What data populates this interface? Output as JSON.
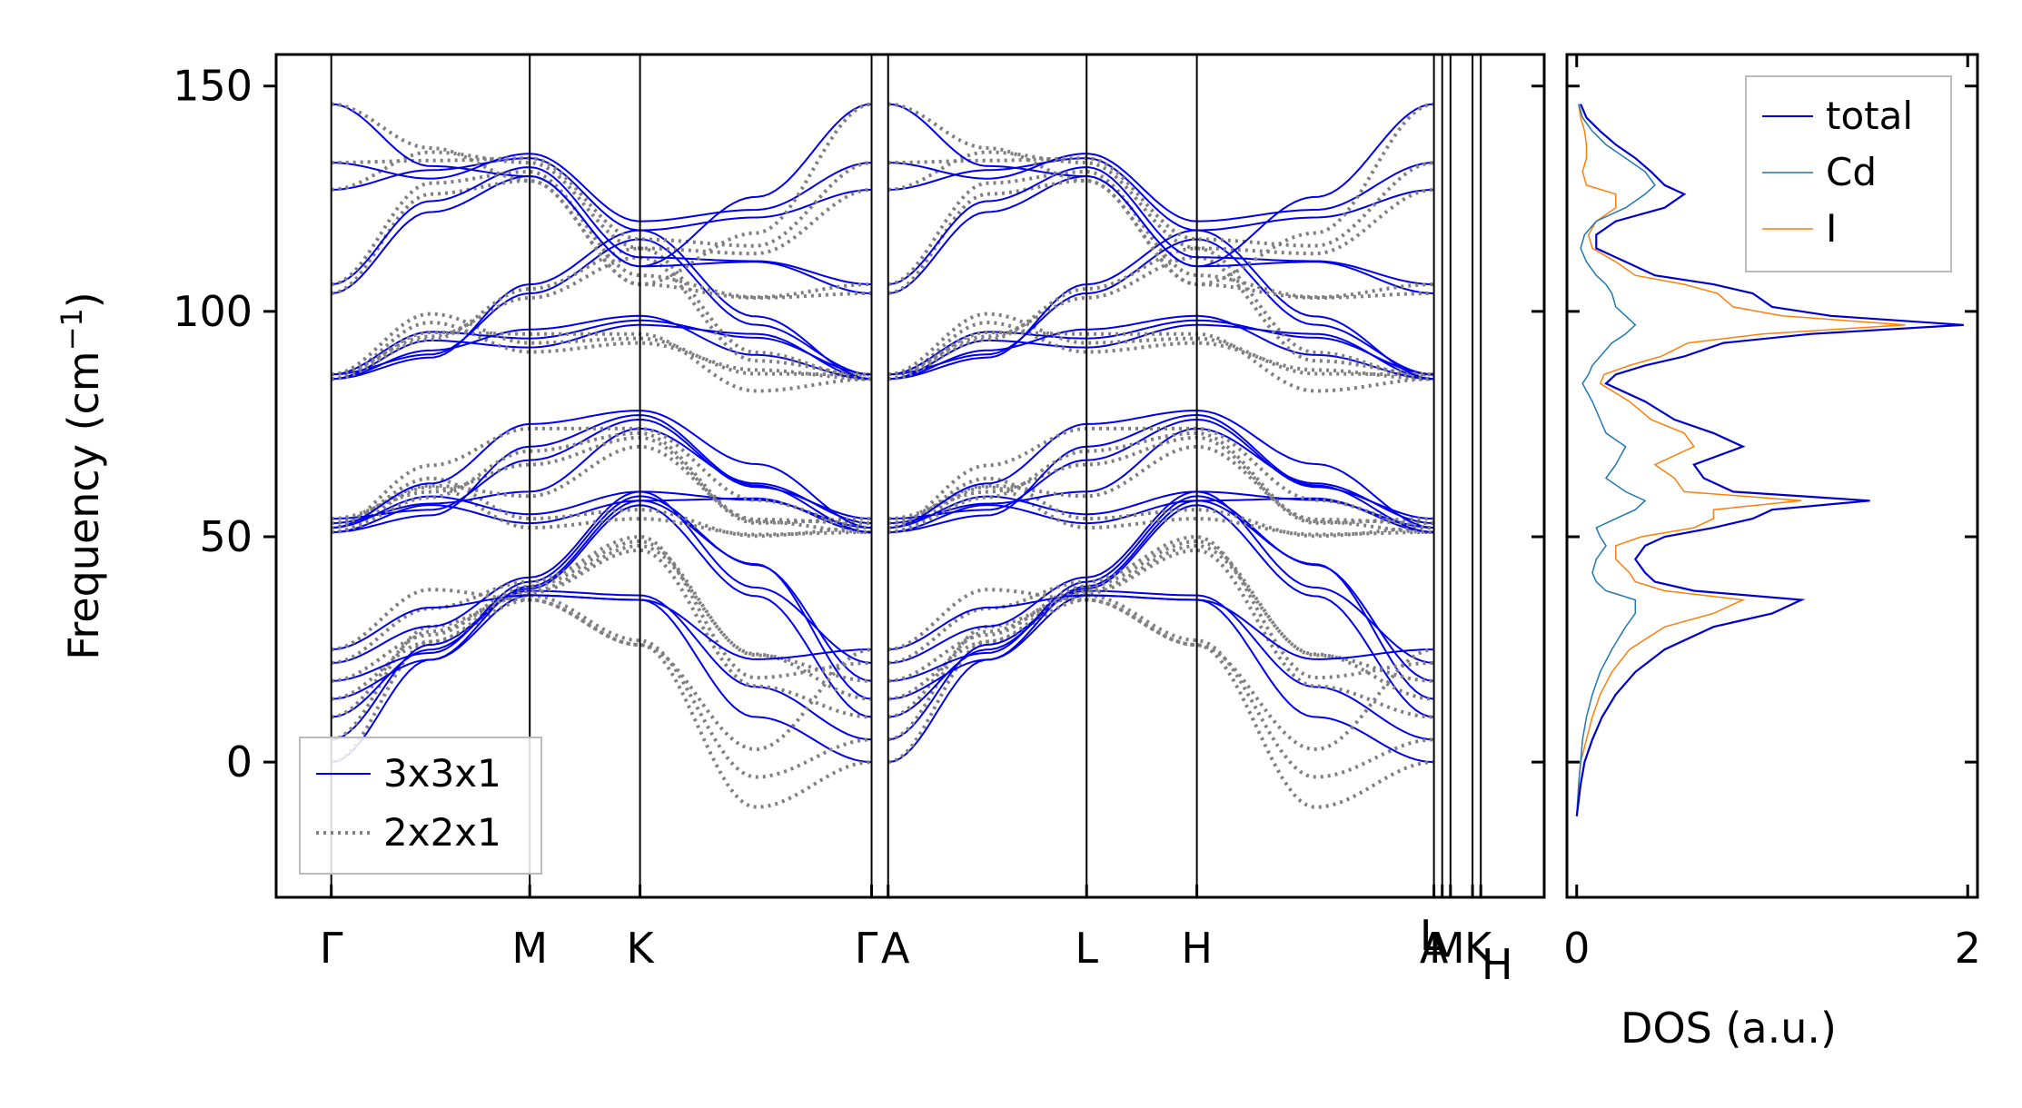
{
  "chart_data": [
    {
      "type": "line",
      "title": "",
      "xlabel": "",
      "ylabel": "Frequency (cm",
      "ylabel_sup": "−1",
      "ylabel_close": ")",
      "ylim": [
        -30,
        157
      ],
      "yticks": [
        0,
        50,
        100,
        150
      ],
      "ytick_labels": [
        "0",
        "50",
        "100",
        "150"
      ],
      "path_segments": [
        {
          "name": "Γ-M-K-Γ",
          "length": 1.0
        },
        {
          "name": "A-L-H-A",
          "length": 1.0
        },
        {
          "name": "L-M",
          "length": 0.03
        },
        {
          "name": "K-H",
          "length": 0.03
        }
      ],
      "high_symmetry_points": [
        {
          "label": "Γ",
          "x": 0.0
        },
        {
          "label": "M",
          "x": 0.36
        },
        {
          "label": "K",
          "x": 0.56
        },
        {
          "label": "Γ",
          "x": 0.98
        },
        {
          "label": "A",
          "x": 1.01
        },
        {
          "label": "L",
          "x": 1.37
        },
        {
          "label": "H",
          "x": 1.57
        },
        {
          "label": "A",
          "x": 2.0
        },
        {
          "label": "L",
          "x": 2.015
        },
        {
          "label": "M",
          "x": 2.03
        },
        {
          "label": "K",
          "x": 2.07
        },
        {
          "label": "H",
          "x": 2.085
        }
      ],
      "xlim": [
        -0.1,
        2.2
      ],
      "series": [
        {
          "name": "3x3x1",
          "color": "#0000ee",
          "style": "solid"
        },
        {
          "name": "2x2x1",
          "color": "#808080",
          "style": "dotted"
        }
      ],
      "band_groups": [
        {
          "group": "acoustic",
          "gamma": [
            0,
            5,
            10,
            14,
            18,
            22,
            25
          ],
          "m": [
            37,
            38,
            38.5,
            39,
            40,
            41
          ],
          "k": [
            36,
            37,
            57,
            58,
            59,
            60
          ]
        },
        {
          "group": "optical-low",
          "gamma": [
            51,
            52,
            53,
            54
          ],
          "m": [
            53,
            55,
            60,
            67,
            70,
            75
          ],
          "k": [
            58,
            60,
            74,
            76,
            77,
            78
          ]
        },
        {
          "group": "optical-mid",
          "gamma": [
            85,
            86
          ],
          "m": [
            92,
            94,
            96,
            104,
            106
          ],
          "k": [
            97,
            98,
            99,
            116,
            118
          ]
        },
        {
          "group": "optical-high",
          "gamma": [
            104,
            106,
            127,
            133,
            146
          ],
          "m": [
            130,
            132,
            134,
            135
          ],
          "k": [
            110,
            112,
            118,
            120
          ]
        }
      ],
      "legend": {
        "position": "lower-left",
        "entries": [
          "3x3x1",
          "2x2x1"
        ]
      }
    },
    {
      "type": "line",
      "title": "",
      "xlabel": "DOS (a.u.)",
      "ylabel": "",
      "xlim": [
        -0.05,
        2.05
      ],
      "xticks": [
        0,
        2
      ],
      "xtick_labels": [
        "0",
        "2"
      ],
      "ylim": [
        -30,
        157
      ],
      "frequency": [
        -12,
        -5,
        0,
        5,
        10,
        15,
        20,
        25,
        30,
        33,
        36,
        38,
        40,
        42,
        45,
        48,
        50,
        52,
        54,
        56,
        58,
        60,
        63,
        66,
        70,
        73,
        76,
        80,
        84,
        86,
        88,
        90,
        93,
        95,
        97,
        99,
        101,
        104,
        106,
        108,
        111,
        114,
        117,
        120,
        123,
        126,
        128,
        131,
        134,
        137,
        140,
        143,
        146
      ],
      "series": [
        {
          "name": "total",
          "color": "#0000cc",
          "values": [
            0.0,
            0.02,
            0.04,
            0.08,
            0.13,
            0.2,
            0.3,
            0.45,
            0.7,
            1.0,
            1.15,
            0.6,
            0.4,
            0.35,
            0.3,
            0.35,
            0.45,
            0.7,
            0.9,
            1.0,
            1.5,
            0.8,
            0.65,
            0.6,
            0.85,
            0.7,
            0.5,
            0.35,
            0.15,
            0.2,
            0.35,
            0.55,
            0.75,
            1.2,
            1.98,
            1.3,
            1.0,
            0.9,
            0.7,
            0.4,
            0.25,
            0.1,
            0.1,
            0.2,
            0.45,
            0.55,
            0.45,
            0.38,
            0.3,
            0.2,
            0.12,
            0.05,
            0.02
          ]
        },
        {
          "name": "Cd",
          "color": "#1f77b4",
          "values": [
            0.0,
            0.01,
            0.02,
            0.03,
            0.05,
            0.08,
            0.12,
            0.18,
            0.25,
            0.3,
            0.3,
            0.15,
            0.1,
            0.08,
            0.1,
            0.15,
            0.12,
            0.1,
            0.2,
            0.3,
            0.35,
            0.25,
            0.15,
            0.2,
            0.25,
            0.15,
            0.12,
            0.08,
            0.03,
            0.06,
            0.08,
            0.12,
            0.18,
            0.25,
            0.3,
            0.25,
            0.2,
            0.18,
            0.15,
            0.1,
            0.05,
            0.02,
            0.04,
            0.1,
            0.25,
            0.35,
            0.4,
            0.35,
            0.25,
            0.15,
            0.08,
            0.03,
            0.01
          ]
        },
        {
          "name": "I",
          "color": "#ff7f0e",
          "values": [
            0.0,
            0.01,
            0.02,
            0.05,
            0.08,
            0.12,
            0.18,
            0.27,
            0.45,
            0.7,
            0.85,
            0.45,
            0.3,
            0.27,
            0.2,
            0.2,
            0.33,
            0.6,
            0.7,
            0.7,
            1.15,
            0.55,
            0.5,
            0.4,
            0.6,
            0.55,
            0.38,
            0.27,
            0.12,
            0.14,
            0.27,
            0.43,
            0.57,
            0.95,
            1.68,
            1.05,
            0.8,
            0.72,
            0.55,
            0.3,
            0.2,
            0.08,
            0.06,
            0.1,
            0.2,
            0.2,
            0.05,
            0.03,
            0.05,
            0.05,
            0.04,
            0.02,
            0.01
          ]
        }
      ],
      "legend": {
        "position": "top-right",
        "entries": [
          "total",
          "Cd",
          "I"
        ]
      }
    }
  ]
}
